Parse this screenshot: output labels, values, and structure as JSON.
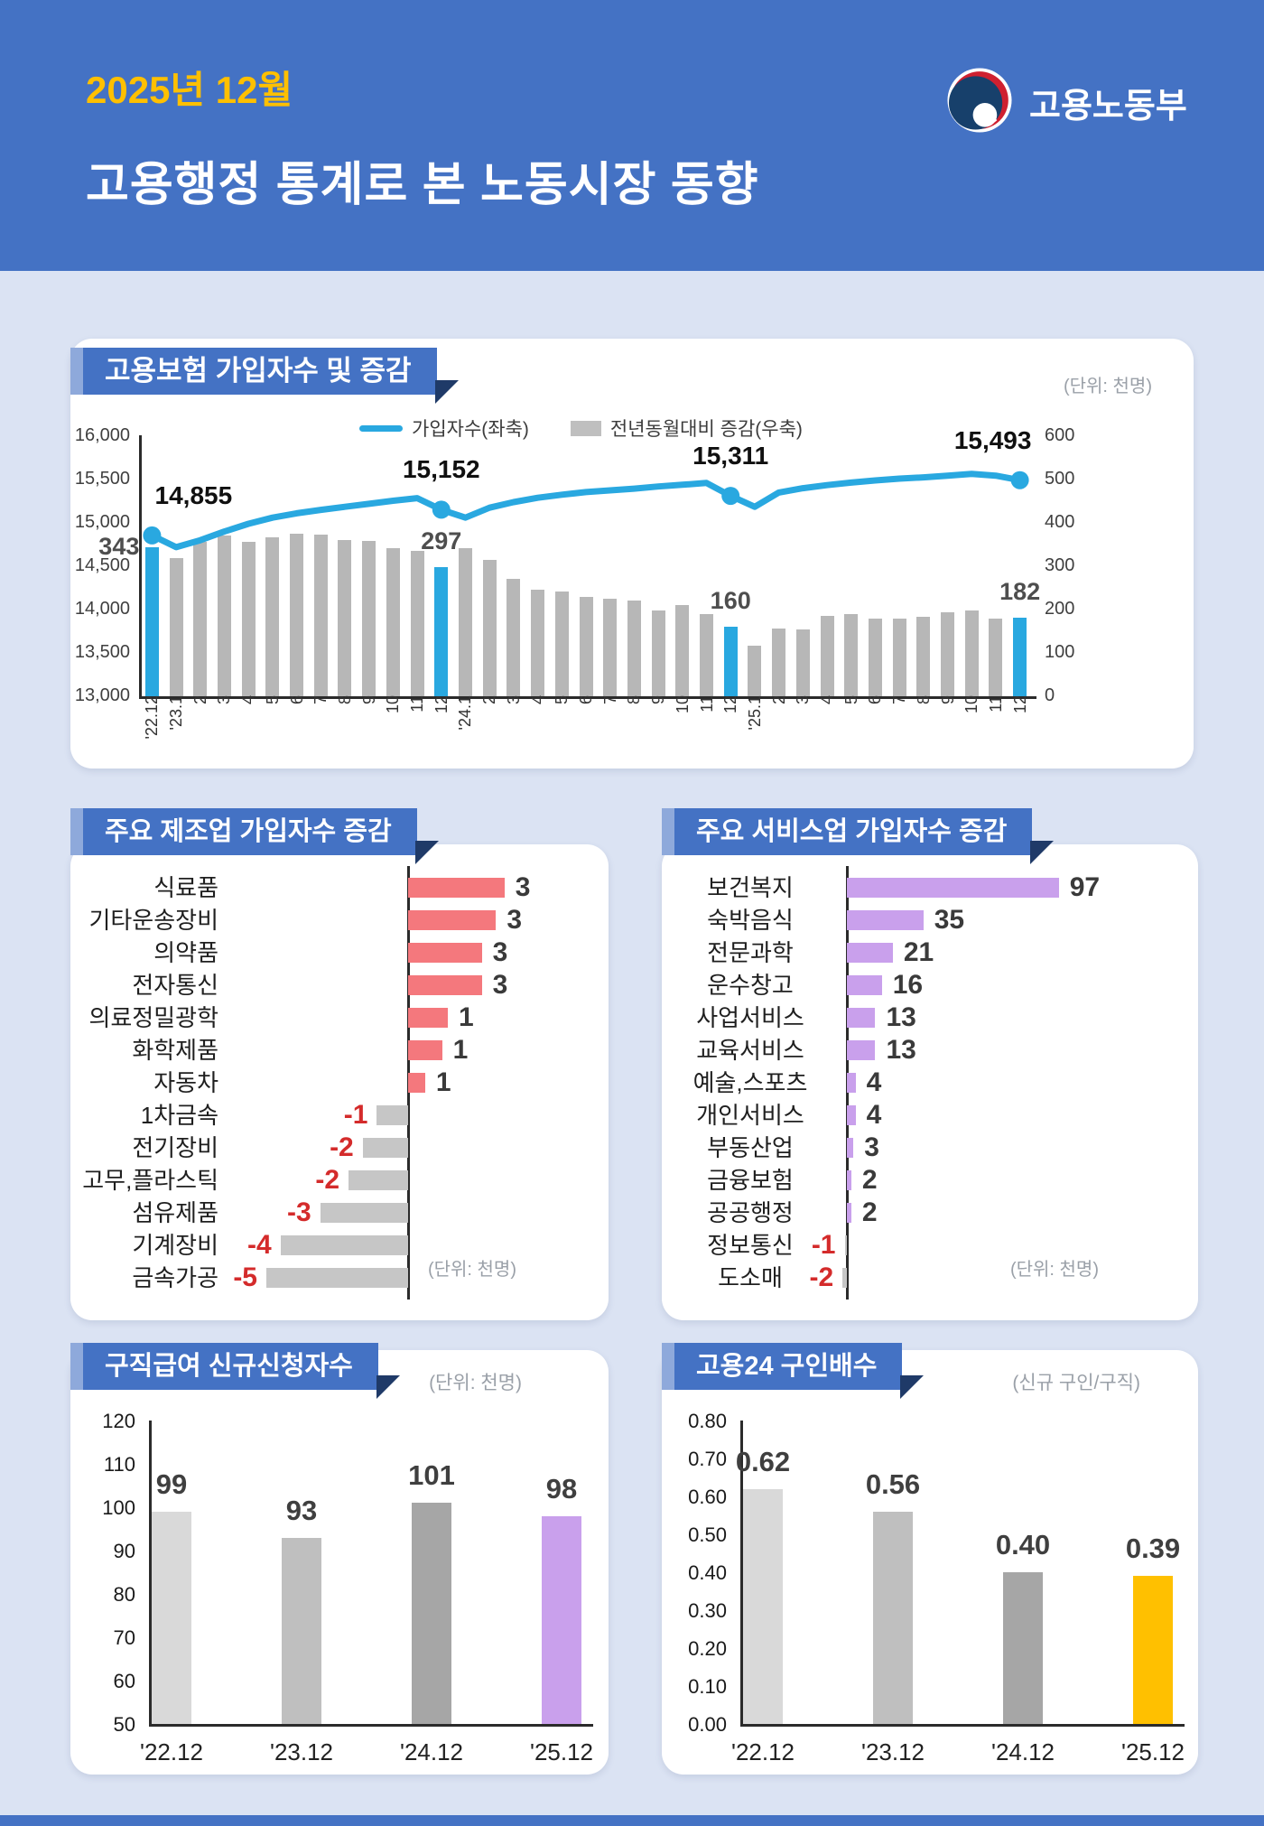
{
  "page": {
    "background": "#dbe3f3",
    "accent_blue": "#4472c4",
    "ribbon_tab": "#8ea9db",
    "ribbon_notch": "#1f3a68",
    "footer_color": "#4472c4"
  },
  "header": {
    "date": "2025년 12월",
    "title": "고용행정 통계로 본 노동시장 동향",
    "ministry": "고용노동부",
    "date_color": "#ffc000",
    "emblem_colors": {
      "navy": "#17406b",
      "red": "#cf2030",
      "white": "#ffffff"
    }
  },
  "chart_data": [
    {
      "id": "insured_trend",
      "type": "combo",
      "title": "고용보험 가입자수 및 증감",
      "unit": "(단위: 천명)",
      "grid": false,
      "legend_position": "top",
      "categories": [
        "'22.12",
        "'23.1",
        "2",
        "3",
        "4",
        "5",
        "6",
        "7",
        "8",
        "9",
        "10",
        "11",
        "12",
        "'24.1",
        "2",
        "3",
        "4",
        "5",
        "6",
        "7",
        "8",
        "9",
        "10",
        "11",
        "12",
        "'25.1",
        "2",
        "3",
        "4",
        "5",
        "6",
        "7",
        "8",
        "9",
        "10",
        "11",
        "12"
      ],
      "series": [
        {
          "name": "가입자수(좌축)",
          "type": "line",
          "axis": "left",
          "color": "#29a8e0",
          "values": [
            14855,
            14720,
            14800,
            14900,
            14990,
            15060,
            15110,
            15150,
            15185,
            15220,
            15255,
            15285,
            15152,
            15060,
            15175,
            15240,
            15290,
            15325,
            15355,
            15375,
            15395,
            15420,
            15440,
            15460,
            15311,
            15185,
            15350,
            15400,
            15435,
            15465,
            15490,
            15510,
            15525,
            15545,
            15565,
            15545,
            15493
          ]
        },
        {
          "name": "전년동월대비 증감(우축)",
          "type": "bar",
          "axis": "right",
          "color": "#b7b7b7",
          "highlight_color": "#29a8e0",
          "highlight_indices": [
            0,
            12,
            24,
            36
          ],
          "values": [
            343,
            318,
            357,
            371,
            357,
            367,
            376,
            373,
            360,
            358,
            341,
            336,
            297,
            341,
            315,
            270,
            246,
            242,
            230,
            224,
            221,
            198,
            211,
            190,
            160,
            117,
            156,
            154,
            185,
            189,
            180,
            179,
            183,
            193,
            198,
            180,
            182
          ]
        }
      ],
      "left_axis": {
        "min": 13000,
        "max": 16000,
        "ticks": [
          "16,000",
          "15,500",
          "15,000",
          "14,500",
          "14,000",
          "13,500",
          "13,000"
        ]
      },
      "right_axis": {
        "min": 0,
        "max": 600,
        "ticks": [
          "600",
          "500",
          "400",
          "300",
          "200",
          "100",
          "0"
        ]
      },
      "annotations": [
        {
          "index": 0,
          "line_label": "14,855",
          "bar_label": "343"
        },
        {
          "index": 12,
          "line_label": "15,152",
          "bar_label": "297"
        },
        {
          "index": 24,
          "line_label": "15,311",
          "bar_label": "160"
        },
        {
          "index": 36,
          "line_label": "15,493",
          "bar_label": "182"
        }
      ]
    },
    {
      "id": "manufacturing",
      "type": "bar",
      "orientation": "horizontal",
      "title": "주요 제조업 가입자수 증감",
      "unit": "(단위: 천명)",
      "categories": [
        "식료품",
        "기타운송장비",
        "의약품",
        "전자통신",
        "의료정밀광학",
        "화학제품",
        "자동차",
        "1차금속",
        "전기장비",
        "고무,플라스틱",
        "섬유제품",
        "기계장비",
        "금속가공"
      ],
      "values": [
        3,
        3,
        3,
        3,
        1,
        1,
        1,
        -1,
        -2,
        -2,
        -3,
        -4,
        -5
      ],
      "bar_scale_values": [
        3.4,
        3.1,
        2.6,
        2.6,
        1.4,
        1.2,
        0.6,
        -1.1,
        -1.6,
        -2.1,
        -3.1,
        -4.5,
        -5.0
      ],
      "positive_color": "#f4787d",
      "negative_color": "#c6c6c6",
      "negative_label_color": "#d42b2b"
    },
    {
      "id": "services",
      "type": "bar",
      "orientation": "horizontal",
      "title": "주요 서비스업 가입자수 증감",
      "unit": "(단위: 천명)",
      "categories": [
        "보건복지",
        "숙박음식",
        "전문과학",
        "운수창고",
        "사업서비스",
        "교육서비스",
        "예술,스포츠",
        "개인서비스",
        "부동산업",
        "금융보험",
        "공공행정",
        "정보통신",
        "도소매"
      ],
      "values": [
        97,
        35,
        21,
        16,
        13,
        13,
        4,
        4,
        3,
        2,
        2,
        -1,
        -2
      ],
      "positive_color": "#c9a0ec",
      "negative_color": "#c6c6c6",
      "negative_label_color": "#d42b2b"
    },
    {
      "id": "benefit_claims",
      "type": "bar",
      "title": "구직급여 신규신청자수",
      "unit": "(단위: 천명)",
      "categories": [
        "'22.12",
        "'23.12",
        "'24.12",
        "'25.12"
      ],
      "values": [
        99,
        93,
        101,
        98
      ],
      "labels": [
        "99",
        "93",
        "101",
        "98"
      ],
      "ylim": [
        50,
        120
      ],
      "yticks": [
        "120",
        "110",
        "100",
        "90",
        "80",
        "70",
        "60",
        "50"
      ],
      "colors": [
        "#d9d9d9",
        "#bfbfbf",
        "#a6a6a6",
        "#c9a0ec"
      ]
    },
    {
      "id": "job_ratio",
      "type": "bar",
      "title": "고용24 구인배수",
      "unit": "(신규 구인/구직)",
      "categories": [
        "'22.12",
        "'23.12",
        "'24.12",
        "'25.12"
      ],
      "values": [
        0.62,
        0.56,
        0.4,
        0.39
      ],
      "labels": [
        "0.62",
        "0.56",
        "0.40",
        "0.39"
      ],
      "ylim": [
        0,
        0.8
      ],
      "yticks": [
        "0.80",
        "0.70",
        "0.60",
        "0.50",
        "0.40",
        "0.30",
        "0.20",
        "0.10",
        "0.00"
      ],
      "colors": [
        "#d9d9d9",
        "#bfbfbf",
        "#a6a6a6",
        "#ffc000"
      ]
    }
  ]
}
